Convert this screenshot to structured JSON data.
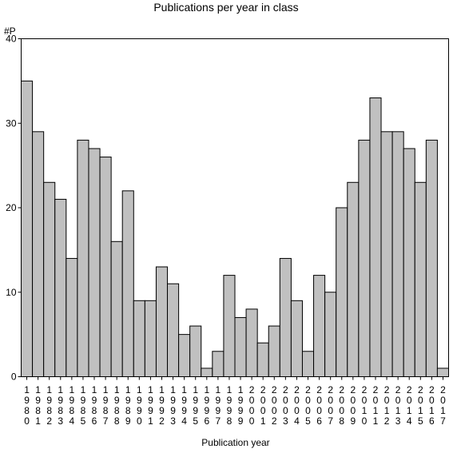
{
  "chart_data": {
    "type": "bar",
    "title": "Publications per year in class",
    "ylabel": "#P",
    "xlabel": "Publication year",
    "ylim": [
      0,
      40
    ],
    "y_ticks": [
      0,
      10,
      20,
      30,
      40
    ],
    "grid": false,
    "colors": {
      "bar_fill": "#c0c0c0",
      "bar_stroke": "#000000",
      "axis": "#000000",
      "background": "#ffffff"
    },
    "categories": [
      "1980",
      "1981",
      "1982",
      "1983",
      "1984",
      "1985",
      "1986",
      "1987",
      "1988",
      "1989",
      "1990",
      "1991",
      "1992",
      "1993",
      "1994",
      "1995",
      "1996",
      "1997",
      "1998",
      "1999",
      "2000",
      "2001",
      "2002",
      "2003",
      "2004",
      "2005",
      "2006",
      "2007",
      "2008",
      "2009",
      "2010",
      "2011",
      "2012",
      "2013",
      "2014",
      "2015",
      "2016",
      "2017"
    ],
    "values": [
      35,
      29,
      23,
      21,
      14,
      28,
      27,
      26,
      16,
      22,
      9,
      9,
      13,
      11,
      5,
      6,
      1,
      3,
      12,
      7,
      8,
      4,
      6,
      14,
      9,
      3,
      12,
      10,
      20,
      23,
      28,
      33,
      29,
      29,
      27,
      23,
      28,
      1
    ]
  }
}
